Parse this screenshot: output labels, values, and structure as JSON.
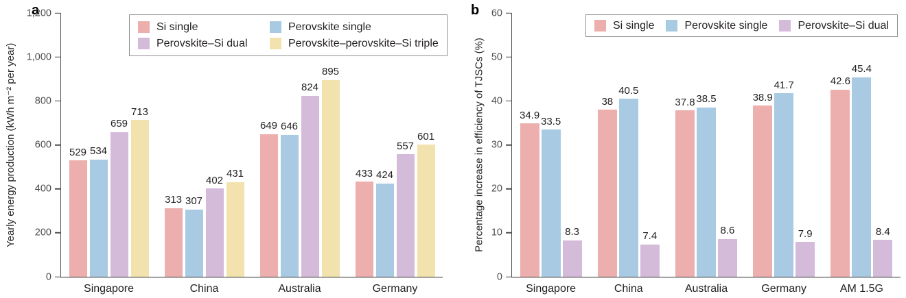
{
  "figure": {
    "background": "#ffffff",
    "panel_a_label": "a",
    "panel_b_label": "b"
  },
  "colors": {
    "si_single": "#ECAFAD",
    "perovskite_single": "#A8CAE3",
    "perovskite_si_dual": "#D4BBDA",
    "perovskite_perovskite_si_triple": "#F2E2AD",
    "axis_line": "#4d4d4d",
    "baseline": "#262626",
    "text": "#231f20"
  },
  "chart_data": [
    {
      "type": "bar",
      "panel_label": "a",
      "title": "",
      "ylabel": "Yearly energy production (kWh m⁻² per year)",
      "xlabel": "",
      "categories": [
        "Singapore",
        "China",
        "Australia",
        "Germany"
      ],
      "series": [
        {
          "name": "Si single",
          "color": "#ECAFAD",
          "values": [
            529,
            313,
            649,
            433
          ]
        },
        {
          "name": "Perovskite single",
          "color": "#A8CAE3",
          "values": [
            534,
            307,
            646,
            424
          ]
        },
        {
          "name": "Perovskite–Si dual",
          "color": "#D4BBDA",
          "values": [
            659,
            402,
            824,
            557
          ]
        },
        {
          "name": "Perovskite–perovskite–Si triple",
          "color": "#F2E2AD",
          "values": [
            713,
            431,
            895,
            601
          ]
        }
      ],
      "ylim": [
        0,
        1200
      ],
      "yticks": [
        0,
        200,
        400,
        600,
        800,
        1000,
        1200
      ],
      "ytick_labels": [
        "0",
        "200",
        "400",
        "600",
        "800",
        "1,000",
        "1,200"
      ],
      "bar_labels": true,
      "grid": false,
      "legend_position": "top-inside",
      "legend_columns": 2
    },
    {
      "type": "bar",
      "panel_label": "b",
      "title": "",
      "ylabel": "Percentage increase in efficiency of TJSCs (%)",
      "xlabel": "",
      "categories": [
        "Singapore",
        "China",
        "Australia",
        "Germany",
        "AM 1.5G"
      ],
      "series": [
        {
          "name": "Si single",
          "color": "#ECAFAD",
          "values": [
            34.9,
            38,
            37.8,
            38.9,
            42.6
          ]
        },
        {
          "name": "Perovskite single",
          "color": "#A8CAE3",
          "values": [
            33.5,
            40.5,
            38.5,
            41.7,
            45.4
          ]
        },
        {
          "name": "Perovskite–Si dual",
          "color": "#D4BBDA",
          "values": [
            8.3,
            7.4,
            8.6,
            7.9,
            8.4
          ]
        }
      ],
      "ylim": [
        0,
        60
      ],
      "yticks": [
        0,
        10,
        20,
        30,
        40,
        50,
        60
      ],
      "ytick_labels": [
        "0",
        "10",
        "20",
        "30",
        "40",
        "50",
        "60"
      ],
      "bar_labels": true,
      "grid": false,
      "legend_position": "top-inside",
      "legend_columns": 3
    }
  ]
}
